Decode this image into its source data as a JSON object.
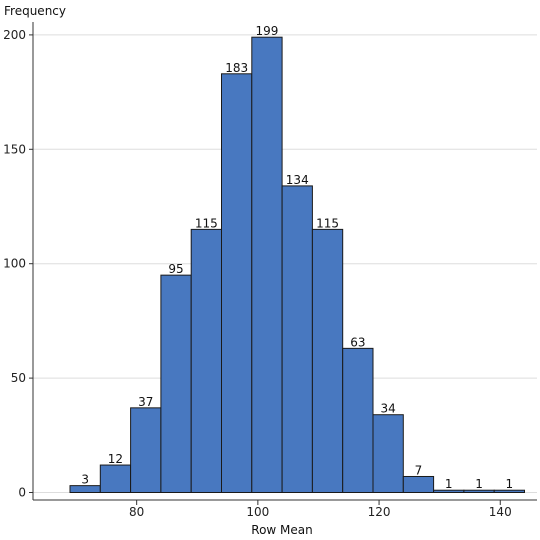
{
  "chart_data": {
    "type": "bar",
    "histogram": true,
    "ylabel": "Frequency",
    "xlabel": "Row Mean",
    "bins": [
      {
        "start": 69,
        "end": 74,
        "count": 3
      },
      {
        "start": 74,
        "end": 79,
        "count": 12
      },
      {
        "start": 79,
        "end": 84,
        "count": 37
      },
      {
        "start": 84,
        "end": 89,
        "count": 95
      },
      {
        "start": 89,
        "end": 94,
        "count": 115
      },
      {
        "start": 94,
        "end": 99,
        "count": 183
      },
      {
        "start": 99,
        "end": 104,
        "count": 199
      },
      {
        "start": 104,
        "end": 109,
        "count": 134
      },
      {
        "start": 109,
        "end": 114,
        "count": 115
      },
      {
        "start": 114,
        "end": 119,
        "count": 63
      },
      {
        "start": 119,
        "end": 124,
        "count": 34
      },
      {
        "start": 124,
        "end": 129,
        "count": 7
      },
      {
        "start": 129,
        "end": 134,
        "count": 1
      },
      {
        "start": 134,
        "end": 139,
        "count": 1
      },
      {
        "start": 139,
        "end": 144,
        "count": 1
      }
    ],
    "xticks": [
      80,
      100,
      120,
      140
    ],
    "yticks": [
      0,
      50,
      100,
      150,
      200
    ],
    "xlim": [
      63,
      146
    ],
    "ylim": [
      0,
      208
    ],
    "grid": "horizontal",
    "bar_color": "#4878c0",
    "bar_edge_color": "#1a1a1a",
    "grid_color": "#dddddd"
  }
}
